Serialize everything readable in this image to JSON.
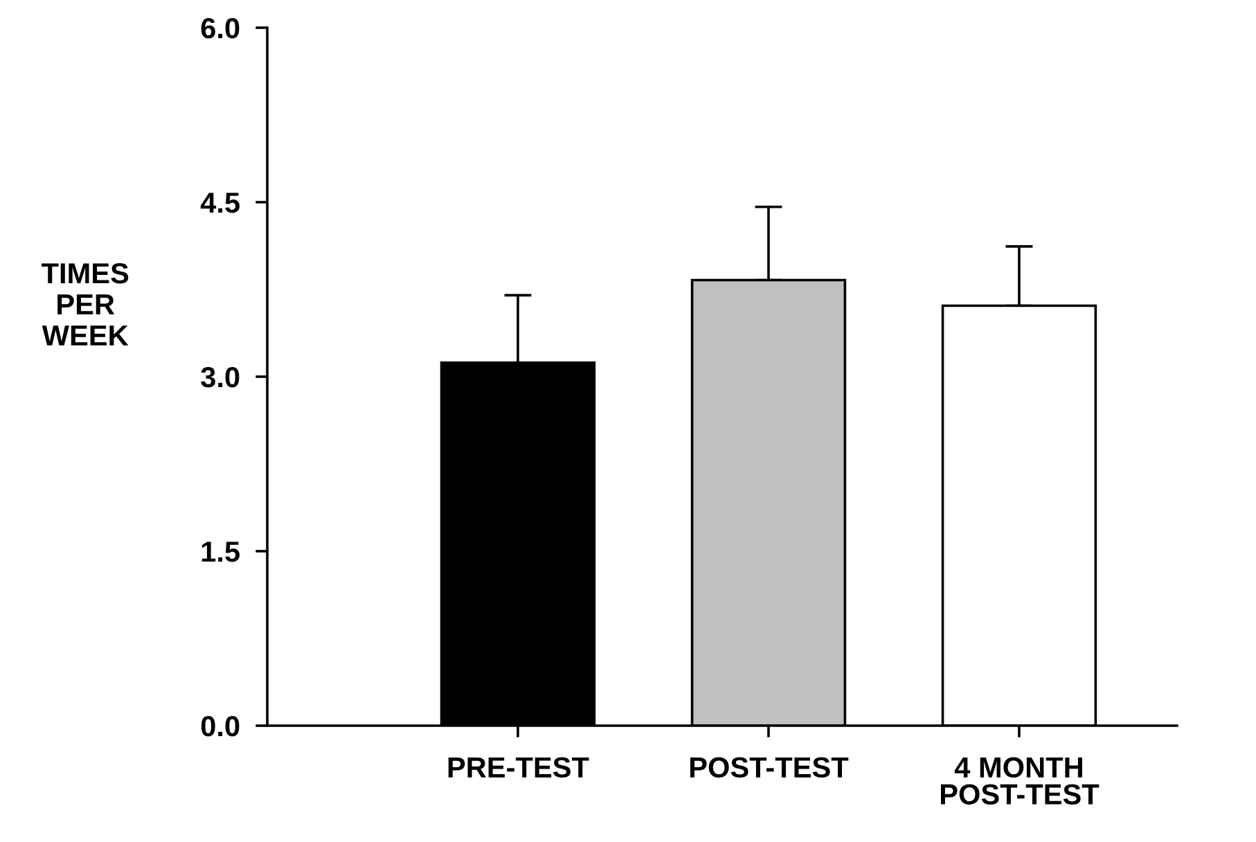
{
  "chart_data": {
    "type": "bar",
    "ylabel": "TIMES\nPER\nWEEK",
    "categories": [
      "PRE-TEST",
      "POST-TEST",
      "4 MONTH\nPOST-TEST"
    ],
    "values": [
      3.12,
      3.83,
      3.61
    ],
    "colors": [
      "#000000",
      "#c0c0c0",
      "#ffffff"
    ],
    "errors": [
      [
        3.12,
        3.7
      ],
      [
        3.83,
        4.46
      ],
      [
        3.61,
        4.12
      ]
    ],
    "ylim": [
      0,
      6
    ],
    "yticks": [
      {
        "value": 0,
        "label": "0.0"
      },
      {
        "value": 1.5,
        "label": "1.5"
      },
      {
        "value": 3,
        "label": "3.0"
      },
      {
        "value": 4.5,
        "label": "4.5"
      },
      {
        "value": 6,
        "label": "6.0"
      }
    ],
    "grid": false,
    "legend": false
  }
}
